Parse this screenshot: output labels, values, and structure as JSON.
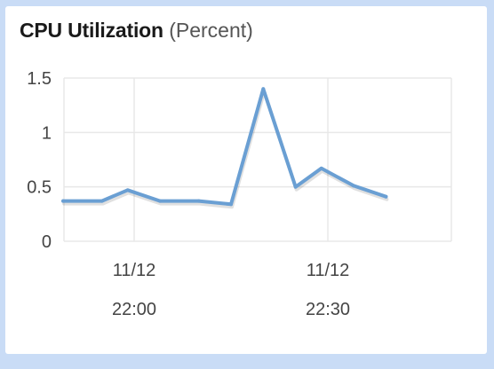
{
  "colors": {
    "line": "#6a9fd3",
    "grid": "#e8e8e8",
    "background_frame": "#c9dcf6"
  },
  "chart_data": {
    "type": "line",
    "title": "CPU Utilization",
    "unit": "(Percent)",
    "ylim": [
      0,
      1.5
    ],
    "y_ticks": [
      "0",
      "0.5",
      "1",
      "1.5"
    ],
    "x_tick_labels": [
      {
        "date": "11/12",
        "time": "22:00"
      },
      {
        "date": "11/12",
        "time": "22:30"
      }
    ],
    "grid": true,
    "series": [
      {
        "values": [
          {
            "t": "21:49",
            "y": 0.37
          },
          {
            "t": "21:55",
            "y": 0.37
          },
          {
            "t": "21:59",
            "y": 0.47
          },
          {
            "t": "22:04",
            "y": 0.37
          },
          {
            "t": "22:10",
            "y": 0.37
          },
          {
            "t": "22:15",
            "y": 0.34
          },
          {
            "t": "22:20",
            "y": 1.4
          },
          {
            "t": "22:25",
            "y": 0.5
          },
          {
            "t": "22:29",
            "y": 0.67
          },
          {
            "t": "22:34",
            "y": 0.51
          },
          {
            "t": "22:39",
            "y": 0.41
          }
        ]
      }
    ]
  }
}
